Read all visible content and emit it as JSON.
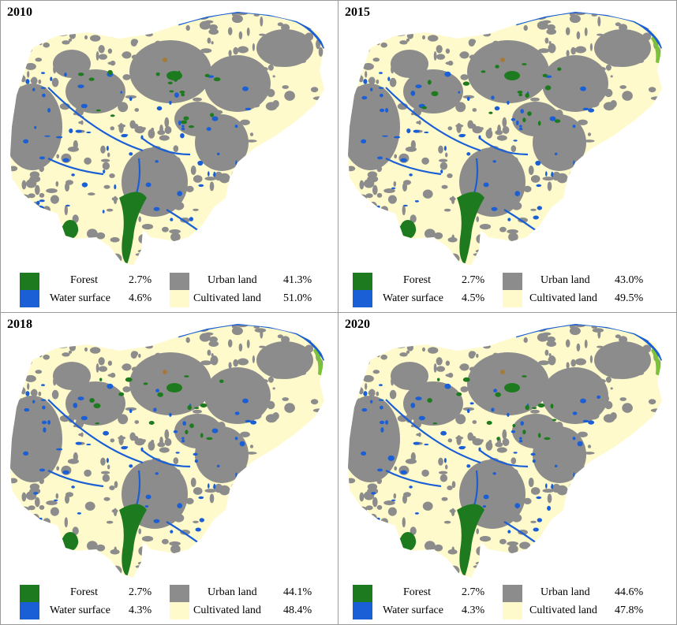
{
  "colors": {
    "forest": "#1e7a1e",
    "water": "#1a5fd6",
    "urban": "#8c8c8c",
    "cultivated": "#fffacb",
    "wetland": "#7ac23a",
    "bare": "#a47a3a"
  },
  "legend_labels": {
    "forest": "Forest",
    "water": "Water surface",
    "urban": "Urban land",
    "cultivated": "Cultivated land"
  },
  "panels": [
    {
      "year": "2010",
      "forest": "2.7%",
      "water": "4.6%",
      "urban": "41.3%",
      "cultivated": "51.0%",
      "urban_fraction": 0.413,
      "wetland": false
    },
    {
      "year": "2015",
      "forest": "2.7%",
      "water": "4.5%",
      "urban": "43.0%",
      "cultivated": "49.5%",
      "urban_fraction": 0.43,
      "wetland": true
    },
    {
      "year": "2018",
      "forest": "2.7%",
      "water": "4.3%",
      "urban": "44.1%",
      "cultivated": "48.4%",
      "urban_fraction": 0.441,
      "wetland": true
    },
    {
      "year": "2020",
      "forest": "2.7%",
      "water": "4.3%",
      "urban": "44.6%",
      "cultivated": "47.8%",
      "urban_fraction": 0.446,
      "wetland": true
    }
  ]
}
